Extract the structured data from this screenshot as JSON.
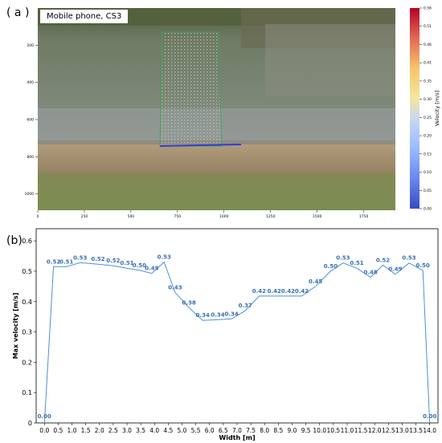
{
  "panel_a": {
    "label": "( a )",
    "caption": "Mobile phone, CS3",
    "x_ticks": [
      "0",
      "250",
      "500",
      "750",
      "1000",
      "1250",
      "1500",
      "1750"
    ],
    "y_ticks": [
      "200",
      "400",
      "600",
      "800",
      "1000"
    ],
    "colorbar": {
      "label": "Velocity [m/s]",
      "ticks": [
        "0.00",
        "0.05",
        "0.10",
        "0.15",
        "0.20",
        "0.25",
        "0.30",
        "0.35",
        "0.41",
        "0.46",
        "0.51",
        "0.56"
      ],
      "colors": [
        "#3b4cc0",
        "#6788ee",
        "#9abbff",
        "#c9d7f0",
        "#edd1c2",
        "#f7a889",
        "#e26952",
        "#b40426"
      ]
    },
    "colors": {
      "sky_water": "#6f7a64",
      "bank": "#a28c6e",
      "grass": "#6f8d52",
      "grid": "#3da35a",
      "line": "#2b3fd6"
    }
  },
  "panel_b": {
    "label": "(b)"
  },
  "chart_data": {
    "type": "line",
    "xlabel": "Width [m]",
    "ylabel": "Max velocity [m/s]",
    "xlim": [
      -0.3,
      14.3
    ],
    "ylim": [
      0,
      0.64
    ],
    "x_ticks": [
      0.0,
      0.5,
      1.0,
      1.5,
      2.0,
      2.5,
      3.0,
      3.5,
      4.0,
      4.5,
      5.0,
      5.5,
      6.0,
      6.5,
      7.0,
      7.5,
      8.0,
      8.5,
      9.0,
      9.5,
      10.0,
      10.5,
      11.0,
      11.5,
      12.0,
      12.5,
      13.0,
      13.5,
      14.0
    ],
    "y_ticks": [
      0,
      0.1,
      0.2,
      0.3,
      0.4,
      0.5,
      0.6
    ],
    "color": "#4a90d9",
    "label_color": "#3a6fb5",
    "points": [
      {
        "x": 0.0,
        "y": 0.0,
        "label": "0.00"
      },
      {
        "x": 0.33,
        "y": 0.515,
        "label": "0.52"
      },
      {
        "x": 0.8,
        "y": 0.515,
        "label": "0.51"
      },
      {
        "x": 1.3,
        "y": 0.528,
        "label": "0.53"
      },
      {
        "x": 1.95,
        "y": 0.523,
        "label": "0.52"
      },
      {
        "x": 2.5,
        "y": 0.518,
        "label": "0.52"
      },
      {
        "x": 3.0,
        "y": 0.51,
        "label": "0.51"
      },
      {
        "x": 3.45,
        "y": 0.503,
        "label": "0.50"
      },
      {
        "x": 3.9,
        "y": 0.493,
        "label": "0.49"
      },
      {
        "x": 4.35,
        "y": 0.53,
        "label": "0.53"
      },
      {
        "x": 4.75,
        "y": 0.43,
        "label": "0.43"
      },
      {
        "x": 5.25,
        "y": 0.38,
        "label": "0.38"
      },
      {
        "x": 5.75,
        "y": 0.338,
        "label": "0.34"
      },
      {
        "x": 6.3,
        "y": 0.34,
        "label": "0.34"
      },
      {
        "x": 6.8,
        "y": 0.343,
        "label": "0.34"
      },
      {
        "x": 7.3,
        "y": 0.37,
        "label": "0.37"
      },
      {
        "x": 7.8,
        "y": 0.418,
        "label": "0.42"
      },
      {
        "x": 8.35,
        "y": 0.418,
        "label": "0.42"
      },
      {
        "x": 8.85,
        "y": 0.418,
        "label": "0.42"
      },
      {
        "x": 9.35,
        "y": 0.418,
        "label": "0.42"
      },
      {
        "x": 9.85,
        "y": 0.45,
        "label": "0.45"
      },
      {
        "x": 10.4,
        "y": 0.5,
        "label": "0.50"
      },
      {
        "x": 10.85,
        "y": 0.527,
        "label": "0.53"
      },
      {
        "x": 11.35,
        "y": 0.51,
        "label": "0.51"
      },
      {
        "x": 11.85,
        "y": 0.48,
        "label": "0.48"
      },
      {
        "x": 12.3,
        "y": 0.52,
        "label": "0.52"
      },
      {
        "x": 12.75,
        "y": 0.49,
        "label": "0.49"
      },
      {
        "x": 13.25,
        "y": 0.527,
        "label": "0.53"
      },
      {
        "x": 13.75,
        "y": 0.503,
        "label": "0.50"
      },
      {
        "x": 14.0,
        "y": 0.0,
        "label": "0.00"
      }
    ]
  }
}
